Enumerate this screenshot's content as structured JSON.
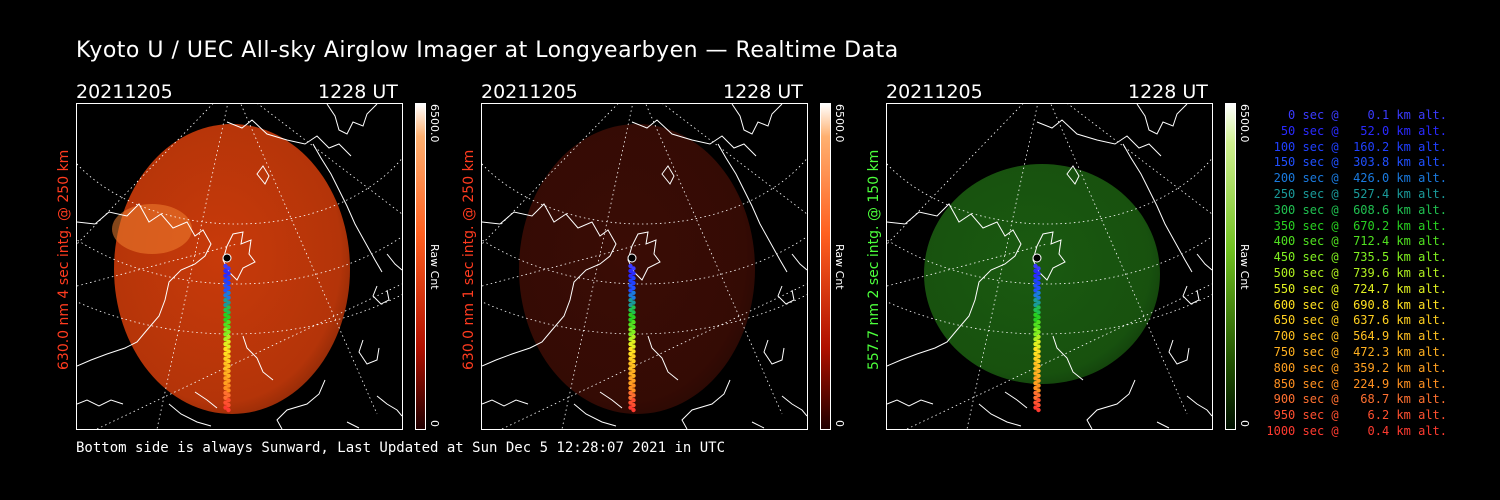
{
  "title": "Kyoto U / UEC All-sky Airglow Imager at Longyearbyen — Realtime Data",
  "footer": "Bottom side is always Sunward, Last Updated at Sun Dec  5 12:28:07 2021 in UTC",
  "panels": [
    {
      "date": "20211205",
      "ut": "1228 UT",
      "ylabel": "630.0 nm 4 sec intg. @ 250 km",
      "label_color": "#ff3b1f",
      "cbar_top": "6500.0",
      "cbar_name": "Raw Cnt",
      "cbar_zero": "0",
      "glow": "#c83a0a"
    },
    {
      "date": "20211205",
      "ut": "1228 UT",
      "ylabel": "630.0 nm 1 sec intg. @ 250 km",
      "label_color": "#ff3b1f",
      "cbar_top": "6500.0",
      "cbar_name": "Raw Cnt",
      "cbar_zero": "0",
      "glow": "#3a0c05"
    },
    {
      "date": "20211205",
      "ut": "1228 UT",
      "ylabel": "557.7 nm 2 sec intg. @ 150 km",
      "label_color": "#4cff3b",
      "cbar_top": "6500.0",
      "cbar_name": "Raw Cnt",
      "cbar_zero": "0",
      "glow": "#1a5a10"
    }
  ],
  "legend": [
    {
      "text": "   0 sec @    0.1 km alt.",
      "color": "#3b3bff"
    },
    {
      "text": "  50 sec @   52.0 km alt.",
      "color": "#2a2aff"
    },
    {
      "text": " 100 sec @  160.2 km alt.",
      "color": "#2040ff"
    },
    {
      "text": " 150 sec @  303.8 km alt.",
      "color": "#2050ff"
    },
    {
      "text": " 200 sec @  426.0 km alt.",
      "color": "#1a7adf"
    },
    {
      "text": " 250 sec @  527.4 km alt.",
      "color": "#1a9a9a"
    },
    {
      "text": " 300 sec @  608.6 km alt.",
      "color": "#20c050"
    },
    {
      "text": " 350 sec @  670.2 km alt.",
      "color": "#28d020"
    },
    {
      "text": " 400 sec @  712.4 km alt.",
      "color": "#50e020"
    },
    {
      "text": " 450 sec @  735.5 km alt.",
      "color": "#80f020"
    },
    {
      "text": " 500 sec @  739.6 km alt.",
      "color": "#b0f020"
    },
    {
      "text": " 550 sec @  724.7 km alt.",
      "color": "#e0f020"
    },
    {
      "text": " 600 sec @  690.8 km alt.",
      "color": "#ffe020"
    },
    {
      "text": " 650 sec @  637.6 km alt.",
      "color": "#ffd020"
    },
    {
      "text": " 700 sec @  564.9 km alt.",
      "color": "#ffc020"
    },
    {
      "text": " 750 sec @  472.3 km alt.",
      "color": "#ffb020"
    },
    {
      "text": " 800 sec @  359.2 km alt.",
      "color": "#ffa020"
    },
    {
      "text": " 850 sec @  224.9 km alt.",
      "color": "#ff9020"
    },
    {
      "text": " 900 sec @   68.7 km alt.",
      "color": "#ff7030"
    },
    {
      "text": " 950 sec @    6.2 km alt.",
      "color": "#ff5030"
    },
    {
      "text": "1000 sec @    0.4 km alt.",
      "color": "#ff3b30"
    }
  ]
}
